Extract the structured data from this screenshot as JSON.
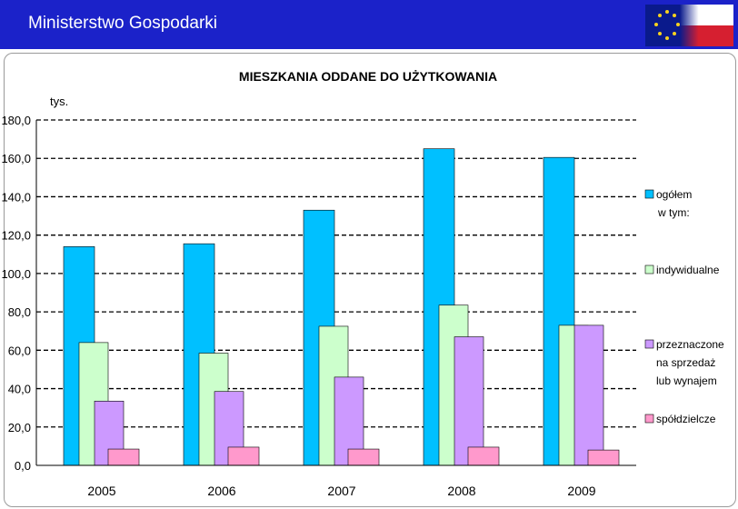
{
  "header": {
    "title": "Ministerstwo Gospodarki"
  },
  "colors": {
    "header_bg": "#1b22c9",
    "ogolem": "#00c0ff",
    "indywidualne": "#ccffcc",
    "sprzedaz": "#cc99ff",
    "spoldzielcze": "#ff99cc"
  },
  "chart_data": {
    "type": "bar",
    "title": "MIESZKANIA ODDANE DO UŻYTKOWANIA",
    "unit_label": "tys.",
    "categories": [
      "2005",
      "2006",
      "2007",
      "2008",
      "2009"
    ],
    "ylim": [
      0,
      180
    ],
    "yticks": [
      "0,0",
      "20,0",
      "40,0",
      "60,0",
      "80,0",
      "100,0",
      "120,0",
      "140,0",
      "160,0",
      "180,0"
    ],
    "grid": "dashed horizontal",
    "legend_position": "right",
    "series": [
      {
        "name": "ogółem",
        "sublabel": "w tym:",
        "color": "#00c0ff",
        "values": [
          114,
          115.5,
          133,
          165,
          160.5
        ]
      },
      {
        "name": "indywidualne",
        "color": "#ccffcc",
        "values": [
          64,
          58.5,
          72.5,
          83.5,
          73
        ]
      },
      {
        "name": "przeznaczone na sprzedaż lub wynajem",
        "color": "#cc99ff",
        "values": [
          33.5,
          38.5,
          46,
          67,
          73
        ]
      },
      {
        "name": "spółdzielcze",
        "color": "#ff99cc",
        "values": [
          8.5,
          9.5,
          8.5,
          9.5,
          8
        ]
      }
    ]
  }
}
